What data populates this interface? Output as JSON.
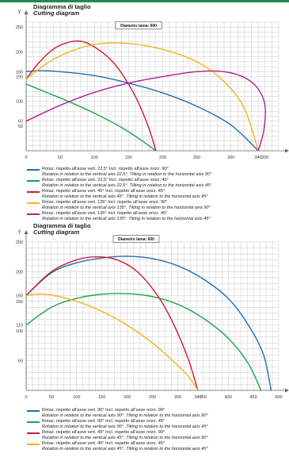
{
  "colors": {
    "top_line": "#1f8a55",
    "grid": "#c9c9c9",
    "axis": "#666666",
    "blue": "#1f6fb2",
    "green": "#1aa64a",
    "red": "#d21a35",
    "yellow": "#f3b21d",
    "magenta": "#b2208f"
  },
  "panels": [
    {
      "title": "Diagramma di taglio",
      "subtitle": "Cutting diagram",
      "chart_data": {
        "type": "line",
        "xlabel": "x",
        "ylabel": "y",
        "annotation": "Diametro lama: 600",
        "xlim": [
          0,
          370
        ],
        "ylim": [
          0,
          260
        ],
        "grid": true,
        "x_ticks": [
          0,
          50,
          100,
          150,
          200,
          250,
          300,
          340,
          350
        ],
        "x_tick_labels": [
          "0",
          "50",
          "100",
          "150",
          "200",
          "250",
          "300",
          "340",
          "350"
        ],
        "y_ticks": [
          50,
          60,
          100,
          150,
          160,
          200,
          250
        ],
        "y_tick_labels": [
          "50",
          "60",
          "100",
          "150",
          "160",
          "200",
          "250"
        ],
        "series": [
          {
            "name": "Rotaz. rispetto all'asse vert. 22,5° Incl. rispetto all'asse orizz. 90°",
            "color_key": "blue",
            "points": [
              [
                0,
                160
              ],
              [
                20,
                162
              ],
              [
                50,
                160
              ],
              [
                100,
                152
              ],
              [
                150,
                137
              ],
              [
                200,
                117
              ],
              [
                250,
                90
              ],
              [
                300,
                52
              ],
              [
                340,
                0
              ]
            ]
          },
          {
            "name": "Rotaz. rispetto all'asse vert. 22,5° Incl. rispetto all'asse orizz. 45°",
            "color_key": "green",
            "points": [
              [
                0,
                135
              ],
              [
                30,
                118
              ],
              [
                60,
                101
              ],
              [
                100,
                76
              ],
              [
                140,
                47
              ],
              [
                170,
                20
              ],
              [
                190,
                0
              ]
            ]
          },
          {
            "name": "Rotaz. rispetto all'asse vert. 45° Incl. rispetto all'asse orizz. 45°",
            "color_key": "red",
            "points": [
              [
                0,
                145
              ],
              [
                20,
                180
              ],
              [
                45,
                210
              ],
              [
                75,
                222
              ],
              [
                100,
                210
              ],
              [
                130,
                175
              ],
              [
                160,
                110
              ],
              [
                180,
                45
              ],
              [
                190,
                0
              ]
            ]
          },
          {
            "name": "Rotaz. rispetto all'asse vert. 135° Incl. rispetto all'asse orizz. 90°",
            "color_key": "yellow",
            "points": [
              [
                0,
                145
              ],
              [
                40,
                185
              ],
              [
                90,
                212
              ],
              [
                140,
                218
              ],
              [
                200,
                205
              ],
              [
                250,
                180
              ],
              [
                290,
                140
              ],
              [
                320,
                85
              ],
              [
                340,
                0
              ]
            ]
          },
          {
            "name": "Rotaz. rispetto all'asse vert. 135° Incl. rispetto all'asse orizz. 45°",
            "color_key": "magenta",
            "points": [
              [
                0,
                60
              ],
              [
                50,
                92
              ],
              [
                100,
                118
              ],
              [
                150,
                137
              ],
              [
                200,
                150
              ],
              [
                250,
                160
              ],
              [
                290,
                160
              ],
              [
                320,
                148
              ],
              [
                340,
                125
              ],
              [
                350,
                90
              ],
              [
                348,
                40
              ],
              [
                340,
                0
              ]
            ]
          }
        ]
      },
      "legend": [
        {
          "color_key": "blue",
          "line1": "Rotaz. rispetto all'asse vert. 22,5° Incl. rispetto all'asse orizz. 90°",
          "line2": "Rotation in relation to the vertical axis 22,5°. Tilting in relation to the horizontal axis 90°"
        },
        {
          "color_key": "green",
          "line1": "Rotaz. rispetto all'asse vert. 22,5° Incl. rispetto all'asse orizz. 45°",
          "line2": "Rotation in relation to the vertical axis 22,5°. Tilting in relation to the horizontal axis 45°"
        },
        {
          "color_key": "red",
          "line1": "Rotaz. rispetto all'asse vert. 45° Incl. rispetto all'asse orizz. 45°",
          "line2": "Rotation in relation to the vertical axis 45°. Tilting in relation to the horizontal axis 45°"
        },
        {
          "color_key": "yellow",
          "line1": "Rotaz. rispetto all'asse vert. 135° Incl. rispetto all'asse orizz. 90°",
          "line2": "Rotation in relation to the vertical axis 135°. Tilting in relation to the horizontal axis 90°"
        },
        {
          "color_key": "magenta",
          "line1": "Rotaz. rispetto all'asse vert. 135° Incl. rispetto all'asse orizz. 45°",
          "line2": "Rotation in relation to the vertical axis 135°. Tilting in relation to the horizontal axis 45°"
        }
      ]
    },
    {
      "title": "Diagramma di taglio",
      "subtitle": "Cutting diagram",
      "chart_data": {
        "type": "line",
        "xlabel": "x",
        "ylabel": "y",
        "annotation": "Diametro lama: 600",
        "xlim": [
          0,
          500
        ],
        "ylim": [
          0,
          250
        ],
        "grid": true,
        "x_ticks": [
          0,
          50,
          100,
          150,
          200,
          250,
          300,
          340,
          350,
          400,
          450,
          500
        ],
        "x_tick_labels": [
          "0",
          "50",
          "100",
          "150",
          "200",
          "250",
          "300",
          "340",
          "350",
          "400",
          "450",
          "500"
        ],
        "y_ticks": [
          50,
          100,
          110,
          150,
          160,
          200,
          250
        ],
        "y_tick_labels": [
          "50",
          "100",
          "110",
          "150",
          "160",
          "200",
          "250"
        ],
        "series": [
          {
            "name": "Rotaz. rispetto all'asse vert. 90° Incl. rispetto all'asse orizz. 90°",
            "color_key": "blue",
            "points": [
              [
                0,
                160
              ],
              [
                50,
                198
              ],
              [
                100,
                215
              ],
              [
                150,
                223
              ],
              [
                200,
                226
              ],
              [
                250,
                222
              ],
              [
                300,
                210
              ],
              [
                350,
                188
              ],
              [
                400,
                155
              ],
              [
                440,
                110
              ],
              [
                470,
                60
              ],
              [
                485,
                0
              ]
            ]
          },
          {
            "name": "Rotaz. rispetto all'asse vert. 90° Incl. rispetto all'asse orizz. 45°",
            "color_key": "green",
            "points": [
              [
                0,
                110
              ],
              [
                50,
                140
              ],
              [
                100,
                155
              ],
              [
                150,
                162
              ],
              [
                200,
                163
              ],
              [
                250,
                158
              ],
              [
                300,
                145
              ],
              [
                350,
                122
              ],
              [
                400,
                88
              ],
              [
                440,
                45
              ],
              [
                465,
                0
              ]
            ]
          },
          {
            "name": "Rotaz. rispetto all'asse vert. 45° Incl. rispetto all'asse orizz. 90°",
            "color_key": "red",
            "points": [
              [
                0,
                160
              ],
              [
                50,
                200
              ],
              [
                100,
                220
              ],
              [
                140,
                225
              ],
              [
                180,
                220
              ],
              [
                220,
                200
              ],
              [
                260,
                160
              ],
              [
                290,
                115
              ],
              [
                320,
                55
              ],
              [
                340,
                0
              ]
            ]
          },
          {
            "name": "Rotaz. rispetto all'asse vert. 45° Incl. rispetto all'asse orizz. 45°",
            "color_key": "yellow",
            "points": [
              [
                0,
                160
              ],
              [
                40,
                162
              ],
              [
                100,
                150
              ],
              [
                150,
                133
              ],
              [
                200,
                110
              ],
              [
                250,
                80
              ],
              [
                290,
                50
              ],
              [
                320,
                25
              ],
              [
                340,
                0
              ]
            ]
          }
        ]
      },
      "legend": [
        {
          "color_key": "blue",
          "line1": "Rotaz. rispetto all'asse vert. 90° Incl. rispetto all'asse orizz. 90°",
          "line2": "Rotation in relation to the vertical axis 90°. Tilting in relation to the horizontal axis 90°"
        },
        {
          "color_key": "green",
          "line1": "Rotaz. rispetto all'asse vert. 90° Incl. rispetto all'asse orizz. 45°",
          "line2": "Rotation in relation to the vertical axis 90°. Tilting in relation to the horizontal axis 45°"
        },
        {
          "color_key": "red",
          "line1": "Rotaz. rispetto all'asse vert. 45° Incl. rispetto all'asse orizz. 90°",
          "line2": "Rotation in relation to the vertical axis 45°. Tilting in relation to the horizontal axis 90°"
        },
        {
          "color_key": "yellow",
          "line1": "Rotaz. rispetto all'asse vert. 45° Incl. rispetto all'asse orizz. 45°",
          "line2": "Rotation in relation to the vertical axis 45°. Tilting in relation to the horizontal axis 45°"
        }
      ]
    }
  ]
}
